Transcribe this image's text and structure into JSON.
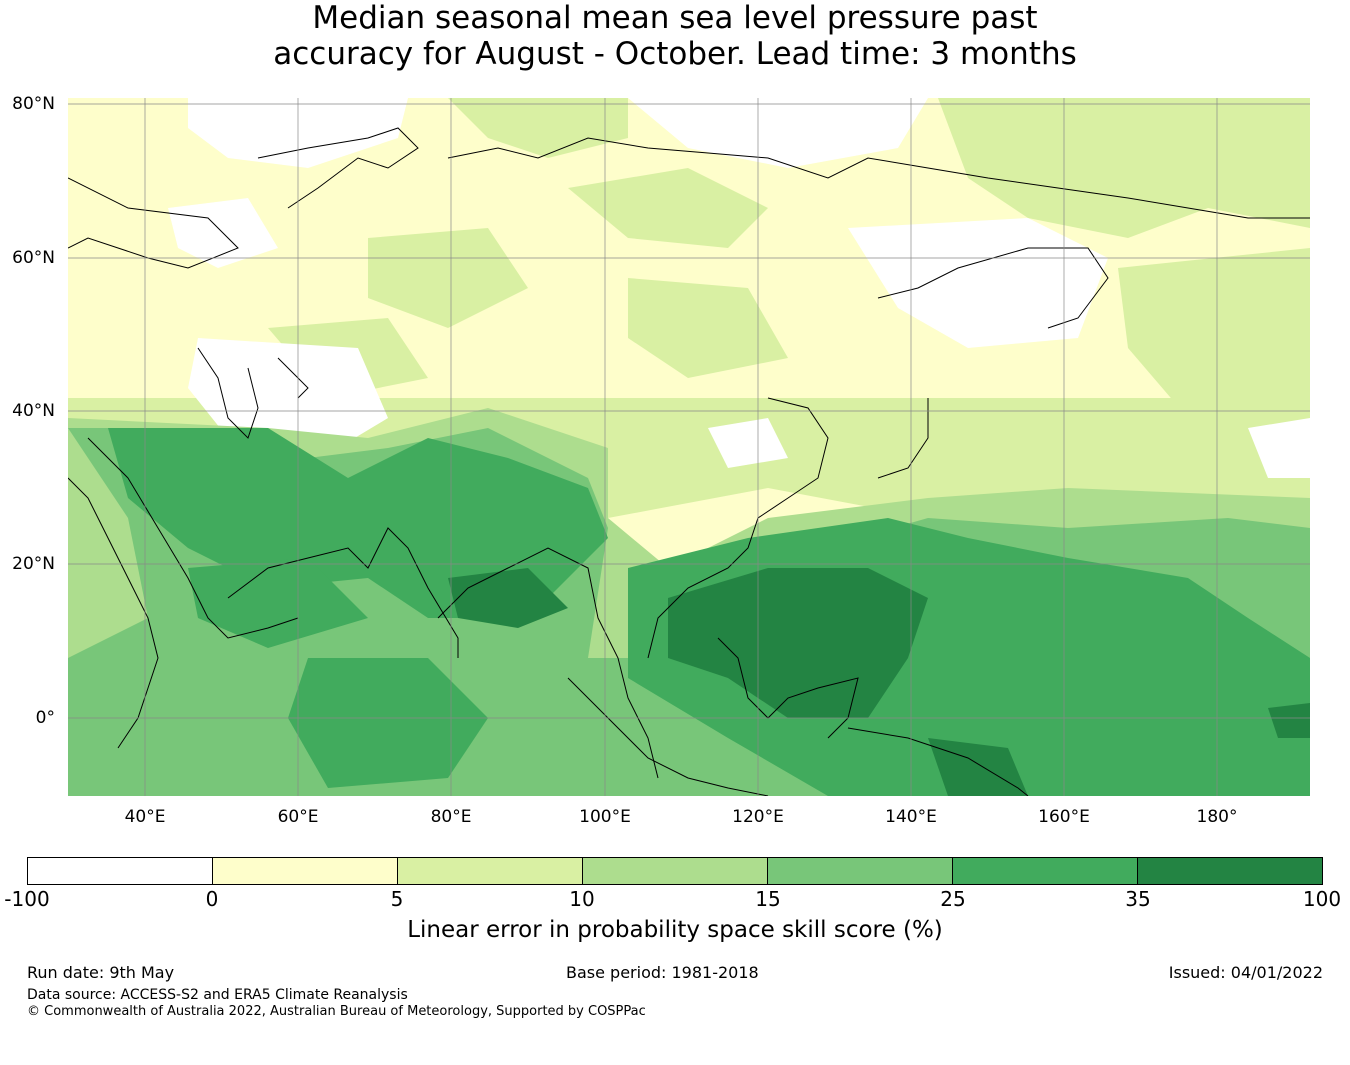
{
  "title": {
    "line1": "Median seasonal mean sea level pressure past",
    "line2": "accuracy for August - October. Lead time: 3 months"
  },
  "axes": {
    "lat_labels": [
      "80°N",
      "60°N",
      "40°N",
      "20°N",
      "0°"
    ],
    "lon_labels": [
      "40°E",
      "60°E",
      "80°E",
      "100°E",
      "120°E",
      "140°E",
      "160°E",
      "180°"
    ]
  },
  "colorbar": {
    "ticks": [
      "-100",
      "0",
      "5",
      "10",
      "15",
      "25",
      "35",
      "100"
    ],
    "colors": [
      "#ffffff",
      "#fefecb",
      "#d9f0a3",
      "#addd8e",
      "#78c679",
      "#41ab5d",
      "#238443"
    ],
    "label": "Linear error in probability space skill score (%)"
  },
  "footer": {
    "run_date": "Run date: 9th May",
    "base_period": "Base period: 1981-2018",
    "issued": "Issued: 04/01/2022",
    "data_source": "Data source: ACCESS-S2 and ERA5 Climate Reanalysis",
    "copyright": "© Commonwealth of Australia 2022, Australian Bureau of Meteorology, Supported by COSPPac"
  }
}
